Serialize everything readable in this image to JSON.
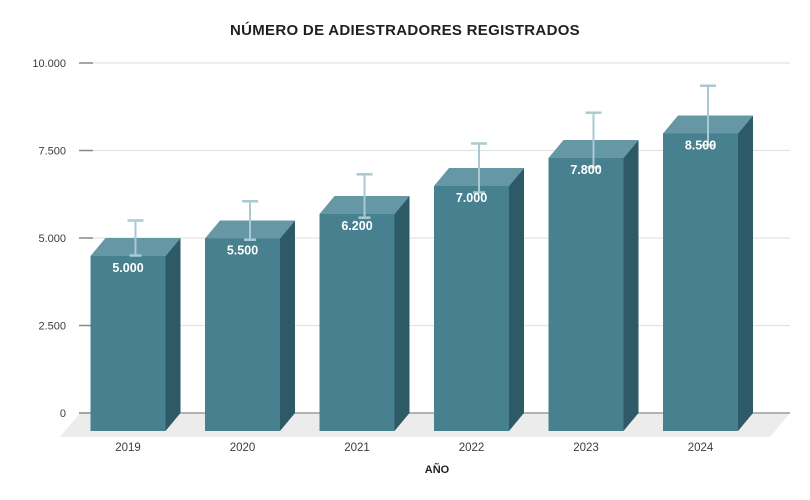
{
  "chart_data": {
    "type": "bar",
    "style": "3d-column",
    "title": "NÚMERO DE ADIESTRADORES REGISTRADOS",
    "xlabel": "AÑO",
    "ylabel": "",
    "categories": [
      "2019",
      "2020",
      "2021",
      "2022",
      "2023",
      "2024"
    ],
    "values": [
      5000,
      5500,
      6200,
      7000,
      7800,
      8500
    ],
    "bar_labels": [
      "5.000",
      "5.500",
      "6.200",
      "7.000",
      "7.800",
      "8.500"
    ],
    "y_tick_values": [
      0,
      2500,
      5000,
      7500,
      10000
    ],
    "y_tick_labels": [
      "0",
      "2.500",
      "5.000",
      "7.500",
      "10.000"
    ],
    "ylim": [
      0,
      10000
    ],
    "grid": true,
    "legend": "none",
    "error_bars_percent": 10,
    "colors": {
      "bar_front": "#47808F",
      "bar_top": "#6697A5",
      "bar_side": "#2E5A67",
      "error_bar": "#A9CAD2",
      "floor": "#ECECEC",
      "gridline": "#E3E3E3",
      "zero_axis": "#9B9B9B",
      "tick_mark": "#8A8A8A",
      "bar_label_text": "#FFFFFF",
      "axis_text": "#3C3C3C",
      "title_text": "#1F1F1F"
    }
  }
}
